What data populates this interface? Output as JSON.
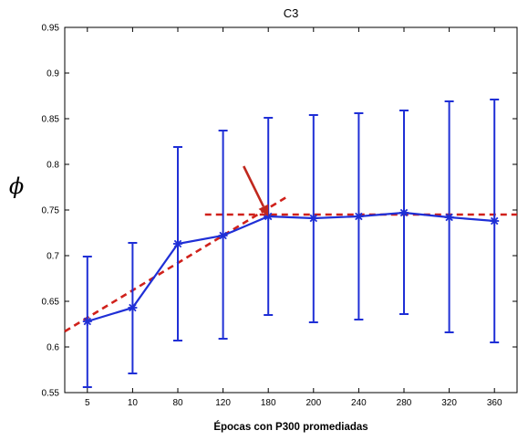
{
  "chart_data": {
    "type": "line",
    "title": "C3",
    "xlabel": "Épocas con P300 promediadas",
    "ylabel": "ϕ",
    "categories": [
      "5",
      "10",
      "80",
      "120",
      "180",
      "200",
      "240",
      "280",
      "320",
      "360"
    ],
    "series": [
      {
        "values": [
          0.628,
          0.643,
          0.713,
          0.722,
          0.743,
          0.741,
          0.743,
          0.747,
          0.742,
          0.738
        ],
        "error_low": [
          0.556,
          0.571,
          0.607,
          0.609,
          0.635,
          0.627,
          0.63,
          0.636,
          0.616,
          0.605
        ],
        "error_high": [
          0.699,
          0.714,
          0.819,
          0.837,
          0.851,
          0.854,
          0.856,
          0.859,
          0.869,
          0.871
        ],
        "color": "#1f2fd6",
        "marker": "asterisk",
        "error_bars": true
      }
    ],
    "trend_lines": [
      {
        "x_start": 0.5,
        "y_start": 0.617,
        "x_end": 5.4,
        "y_end": 0.764,
        "color": "#d0211b",
        "style": "dashed"
      },
      {
        "x_start": 3.6,
        "y_start": 0.745,
        "x_end": 10.5,
        "y_end": 0.745,
        "color": "#d0211b",
        "style": "dashed"
      }
    ],
    "annotations": [
      {
        "type": "arrow",
        "points_to": {
          "x": "180",
          "y": 0.743
        },
        "color": "#c0281e"
      }
    ],
    "ylim": [
      0.55,
      0.95
    ],
    "yticks": [
      0.55,
      0.6,
      0.65,
      0.7,
      0.75,
      0.8,
      0.85,
      0.9,
      0.95
    ],
    "yticklabels": [
      "0.55",
      "0.6",
      "0.65",
      "0.7",
      "0.75",
      "0.8",
      "0.85",
      "0.9",
      "0.95"
    ],
    "grid": false,
    "legend": "none"
  }
}
